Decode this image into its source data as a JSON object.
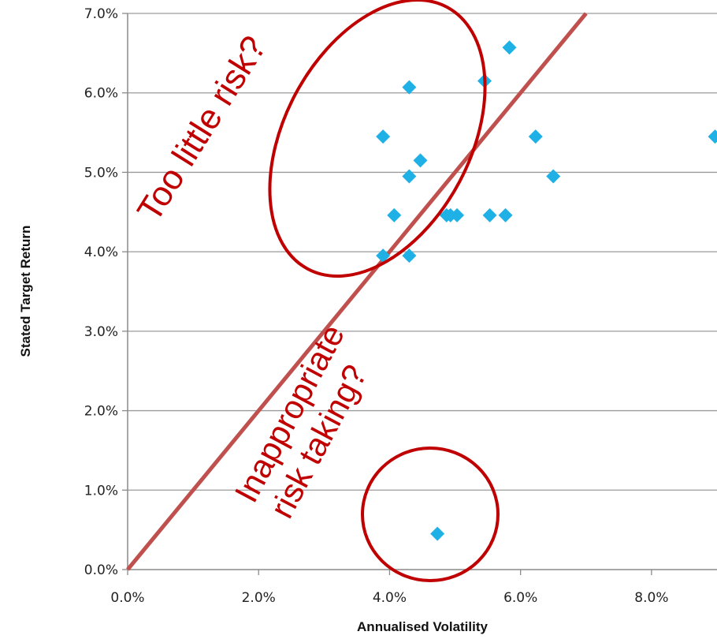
{
  "chart_data": {
    "type": "scatter",
    "xlabel": "Annualised Volatility",
    "ylabel": "Stated Target Return",
    "xlim": [
      0,
      0.09
    ],
    "ylim": [
      0,
      0.07
    ],
    "x_ticks": [
      "0.0%",
      "2.0%",
      "4.0%",
      "6.0%",
      "8.0%"
    ],
    "y_ticks": [
      "0.0%",
      "1.0%",
      "2.0%",
      "3.0%",
      "4.0%",
      "5.0%",
      "6.0%",
      "7.0%"
    ],
    "grid": "horizontal",
    "marker_color": "#1fb1e6",
    "line_color": "#c0504d",
    "annotation_color": "#c00000",
    "reference_line": {
      "from": [
        0,
        0
      ],
      "to": [
        0.07,
        0.07
      ]
    },
    "points": [
      {
        "x": 0.039,
        "y": 0.0545
      },
      {
        "x": 0.043,
        "y": 0.0607
      },
      {
        "x": 0.0545,
        "y": 0.0615
      },
      {
        "x": 0.0583,
        "y": 0.0657
      },
      {
        "x": 0.043,
        "y": 0.0495
      },
      {
        "x": 0.0447,
        "y": 0.0515
      },
      {
        "x": 0.0407,
        "y": 0.0446
      },
      {
        "x": 0.0487,
        "y": 0.0446
      },
      {
        "x": 0.0493,
        "y": 0.0446
      },
      {
        "x": 0.0503,
        "y": 0.0446
      },
      {
        "x": 0.0553,
        "y": 0.0446
      },
      {
        "x": 0.0577,
        "y": 0.0446
      },
      {
        "x": 0.039,
        "y": 0.0395
      },
      {
        "x": 0.043,
        "y": 0.0395
      },
      {
        "x": 0.0623,
        "y": 0.0545
      },
      {
        "x": 0.065,
        "y": 0.0495
      },
      {
        "x": 0.0897,
        "y": 0.0545
      },
      {
        "x": 0.0473,
        "y": 0.0045
      }
    ],
    "annotations": {
      "too_little": "Too little risk?",
      "inappropriate_line1": "Inappropriate",
      "inappropriate_line2": "risk taking?"
    }
  }
}
